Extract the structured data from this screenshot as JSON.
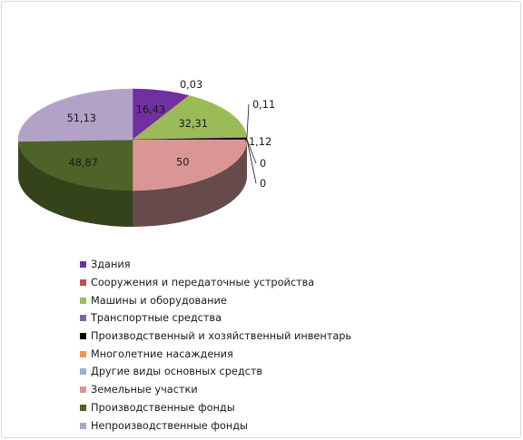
{
  "chart_data": {
    "type": "pie",
    "title": "",
    "series": [
      {
        "name": "Здания",
        "value": 16.43,
        "label": "16,43",
        "color": "#7030a0",
        "side": "#4e2271"
      },
      {
        "name": "Сооружения и передаточные устройства",
        "value": 0.03,
        "label": "0,03",
        "color": "#c0504d",
        "side": "#8a3835"
      },
      {
        "name": "Машины и оборудование",
        "value": 32.31,
        "label": "32,31",
        "color": "#9bbb59",
        "side": "#6f8940"
      },
      {
        "name": "Транспортные средства",
        "value": 0.11,
        "label": "0,11",
        "color": "#8064a2",
        "side": "#5b4774"
      },
      {
        "name": "Производственный и хозяйственный инвентарь",
        "value": 1.12,
        "label": "1,12",
        "color": "#000000",
        "side": "#000000"
      },
      {
        "name": "Многолетние насаждения",
        "value": 0,
        "label": "0",
        "color": "#f79646",
        "side": "#b06a30"
      },
      {
        "name": "Другие виды основных средств",
        "value": 0,
        "label": "0",
        "color": "#95b3d7",
        "side": "#6a809a"
      },
      {
        "name": "Земельные участки",
        "value": 50,
        "label": "50",
        "color": "#d99694",
        "side": "#674a4b"
      },
      {
        "name": "Производственные фонды",
        "value": 48.87,
        "label": "48,87",
        "color": "#4f6228",
        "side": "#35431b"
      },
      {
        "name": "Непроизводственные фонды",
        "value": 51.13,
        "label": "51,13",
        "color": "#b3a2c7",
        "side": "#7f7390"
      }
    ],
    "legend_position": "bottom",
    "style": "3d"
  }
}
